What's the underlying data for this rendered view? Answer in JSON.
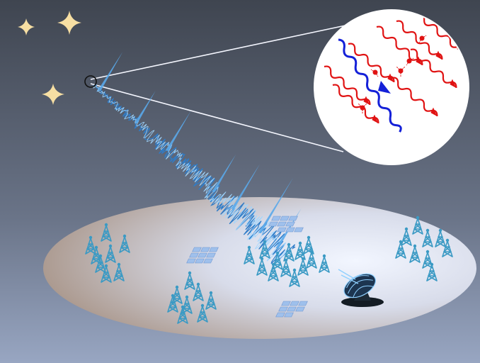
{
  "scene": {
    "colors": {
      "sky_top": "#3f4550",
      "sky_bottom": "#98a6c2",
      "ground_light": "#f2f6ff",
      "ground_dark": "#b9a89c",
      "star": "#f7dfa3",
      "signal": "#5aa8ea",
      "signal_dark": "#2f7cc8",
      "zoom_bg": "#ffffff",
      "wave_red": "#e01212",
      "wave_blue": "#1420d8",
      "antenna": "#4aa3c9",
      "panel": "#8fb0e0",
      "dish": "#1d3550"
    },
    "icons": [
      "star-icon",
      "radio-tower-icon",
      "antenna-array-panel-icon",
      "radio-dish-icon",
      "wave-packet-icon"
    ]
  }
}
